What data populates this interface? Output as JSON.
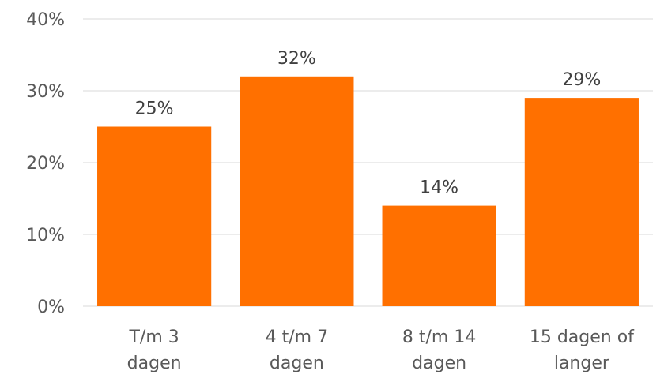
{
  "chart_data": {
    "type": "bar",
    "title": "",
    "xlabel": "",
    "ylabel": "",
    "categories": [
      [
        "T/m 3",
        "dagen"
      ],
      [
        "4 t/m 7",
        "dagen"
      ],
      [
        "8 t/m 14",
        "dagen"
      ],
      [
        "15 dagen of",
        "langer"
      ]
    ],
    "values": [
      25,
      32,
      14,
      29
    ],
    "data_labels": [
      "25%",
      "32%",
      "14%",
      "29%"
    ],
    "y_ticks": [
      0,
      10,
      20,
      30,
      40
    ],
    "y_tick_labels": [
      "0%",
      "10%",
      "20%",
      "30%",
      "40%"
    ],
    "ylim": [
      0,
      40
    ],
    "grid": true,
    "legend": "none",
    "colors": {
      "bar": "#ff7000",
      "grid": "#d9d9d9",
      "tick_text": "#595959",
      "label_text": "#404040"
    }
  }
}
